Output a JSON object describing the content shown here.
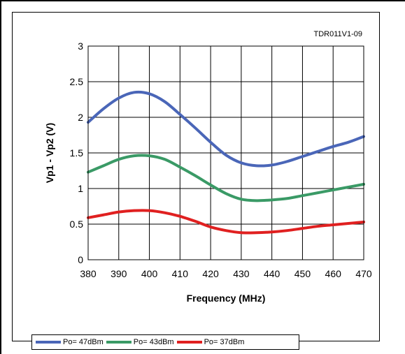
{
  "chart_data": {
    "type": "line",
    "code_label": "TDR011V1-09",
    "xlabel": "Frequency (MHz)",
    "ylabel": "Vp1 - Vp2 (V)",
    "xlim": [
      380,
      470
    ],
    "ylim": [
      0,
      3
    ],
    "x_ticks": [
      "380",
      "390",
      "400",
      "410",
      "420",
      "430",
      "440",
      "450",
      "460",
      "470"
    ],
    "y_ticks": [
      "0",
      "0.5",
      "1",
      "1.5",
      "2",
      "2.5",
      "3"
    ],
    "grid": true,
    "legend_position": "bottom",
    "x": [
      380,
      385,
      390,
      395,
      400,
      405,
      410,
      415,
      420,
      425,
      430,
      435,
      440,
      445,
      450,
      455,
      460,
      465,
      470
    ],
    "series": [
      {
        "name": "Po= 47dBm",
        "color": "#4a66b8",
        "values": [
          1.93,
          2.12,
          2.27,
          2.35,
          2.33,
          2.22,
          2.04,
          1.85,
          1.65,
          1.47,
          1.36,
          1.32,
          1.33,
          1.38,
          1.45,
          1.52,
          1.59,
          1.65,
          1.73
        ]
      },
      {
        "name": "Po= 43dBm",
        "color": "#3a9a66",
        "values": [
          1.23,
          1.32,
          1.41,
          1.46,
          1.46,
          1.41,
          1.3,
          1.18,
          1.05,
          0.93,
          0.85,
          0.83,
          0.84,
          0.86,
          0.9,
          0.94,
          0.98,
          1.02,
          1.06
        ]
      },
      {
        "name": "Po= 37dBm",
        "color": "#e02020",
        "values": [
          0.59,
          0.63,
          0.67,
          0.69,
          0.69,
          0.66,
          0.61,
          0.54,
          0.46,
          0.41,
          0.38,
          0.38,
          0.39,
          0.41,
          0.44,
          0.47,
          0.49,
          0.51,
          0.53
        ]
      }
    ]
  }
}
